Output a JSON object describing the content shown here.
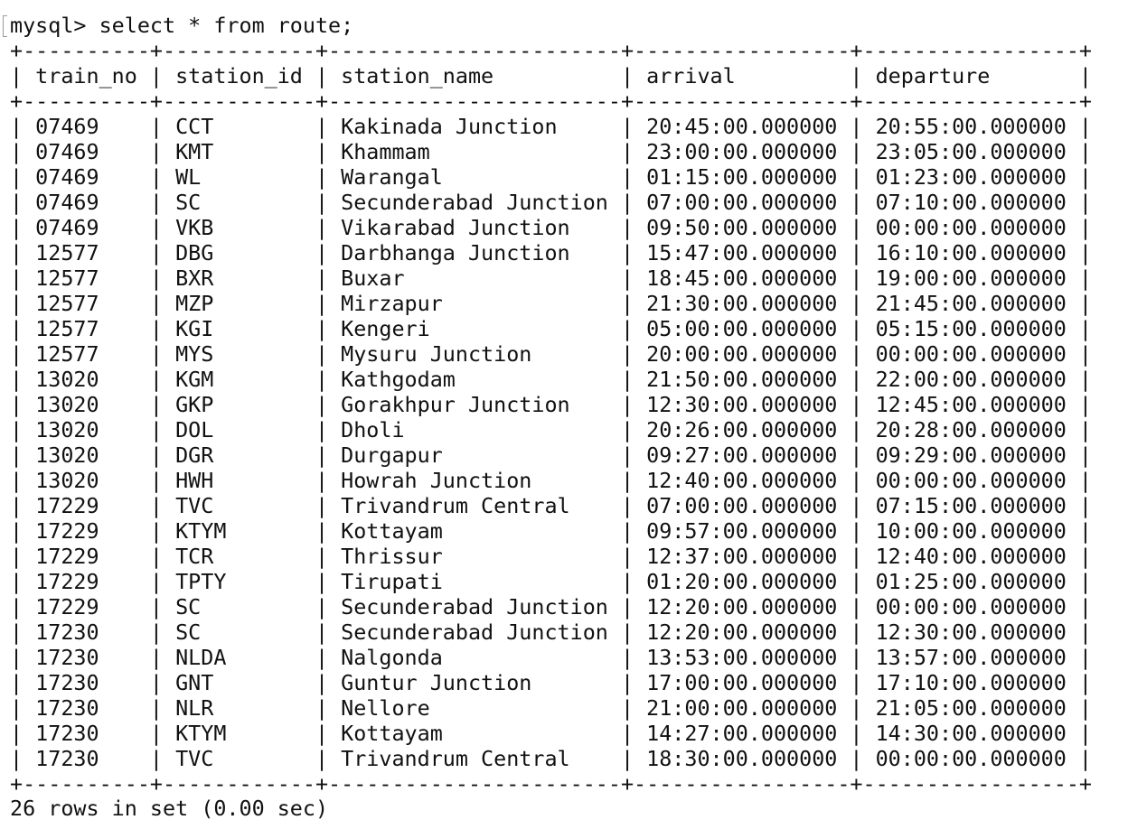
{
  "terminal": {
    "command": "mysql> select * from route;",
    "footer": "26 rows in set (0.00 sec)"
  },
  "table": {
    "columns": [
      "train_no",
      "station_id",
      "station_name",
      "arrival",
      "departure"
    ],
    "rows": [
      [
        "07469",
        "CCT",
        "Kakinada Junction",
        "20:45:00.000000",
        "20:55:00.000000"
      ],
      [
        "07469",
        "KMT",
        "Khammam",
        "23:00:00.000000",
        "23:05:00.000000"
      ],
      [
        "07469",
        "WL",
        "Warangal",
        "01:15:00.000000",
        "01:23:00.000000"
      ],
      [
        "07469",
        "SC",
        "Secunderabad Junction",
        "07:00:00.000000",
        "07:10:00.000000"
      ],
      [
        "07469",
        "VKB",
        "Vikarabad Junction",
        "09:50:00.000000",
        "00:00:00.000000"
      ],
      [
        "12577",
        "DBG",
        "Darbhanga Junction",
        "15:47:00.000000",
        "16:10:00.000000"
      ],
      [
        "12577",
        "BXR",
        "Buxar",
        "18:45:00.000000",
        "19:00:00.000000"
      ],
      [
        "12577",
        "MZP",
        "Mirzapur",
        "21:30:00.000000",
        "21:45:00.000000"
      ],
      [
        "12577",
        "KGI",
        "Kengeri",
        "05:00:00.000000",
        "05:15:00.000000"
      ],
      [
        "12577",
        "MYS",
        "Mysuru Junction",
        "20:00:00.000000",
        "00:00:00.000000"
      ],
      [
        "13020",
        "KGM",
        "Kathgodam",
        "21:50:00.000000",
        "22:00:00.000000"
      ],
      [
        "13020",
        "GKP",
        "Gorakhpur Junction",
        "12:30:00.000000",
        "12:45:00.000000"
      ],
      [
        "13020",
        "DOL",
        "Dholi",
        "20:26:00.000000",
        "20:28:00.000000"
      ],
      [
        "13020",
        "DGR",
        "Durgapur",
        "09:27:00.000000",
        "09:29:00.000000"
      ],
      [
        "13020",
        "HWH",
        "Howrah Junction",
        "12:40:00.000000",
        "00:00:00.000000"
      ],
      [
        "17229",
        "TVC",
        "Trivandrum Central",
        "07:00:00.000000",
        "07:15:00.000000"
      ],
      [
        "17229",
        "KTYM",
        "Kottayam",
        "09:57:00.000000",
        "10:00:00.000000"
      ],
      [
        "17229",
        "TCR",
        "Thrissur",
        "12:37:00.000000",
        "12:40:00.000000"
      ],
      [
        "17229",
        "TPTY",
        "Tirupati",
        "01:20:00.000000",
        "01:25:00.000000"
      ],
      [
        "17229",
        "SC",
        "Secunderabad Junction",
        "12:20:00.000000",
        "00:00:00.000000"
      ],
      [
        "17230",
        "SC",
        "Secunderabad Junction",
        "12:20:00.000000",
        "12:30:00.000000"
      ],
      [
        "17230",
        "NLDA",
        "Nalgonda",
        "13:53:00.000000",
        "13:57:00.000000"
      ],
      [
        "17230",
        "GNT",
        "Guntur Junction",
        "17:00:00.000000",
        "17:10:00.000000"
      ],
      [
        "17230",
        "NLR",
        "Nellore",
        "21:00:00.000000",
        "21:05:00.000000"
      ],
      [
        "17230",
        "KTYM",
        "Kottayam",
        "14:27:00.000000",
        "14:30:00.000000"
      ],
      [
        "17230",
        "TVC",
        "Trivandrum Central",
        "18:30:00.000000",
        "00:00:00.000000"
      ]
    ]
  }
}
